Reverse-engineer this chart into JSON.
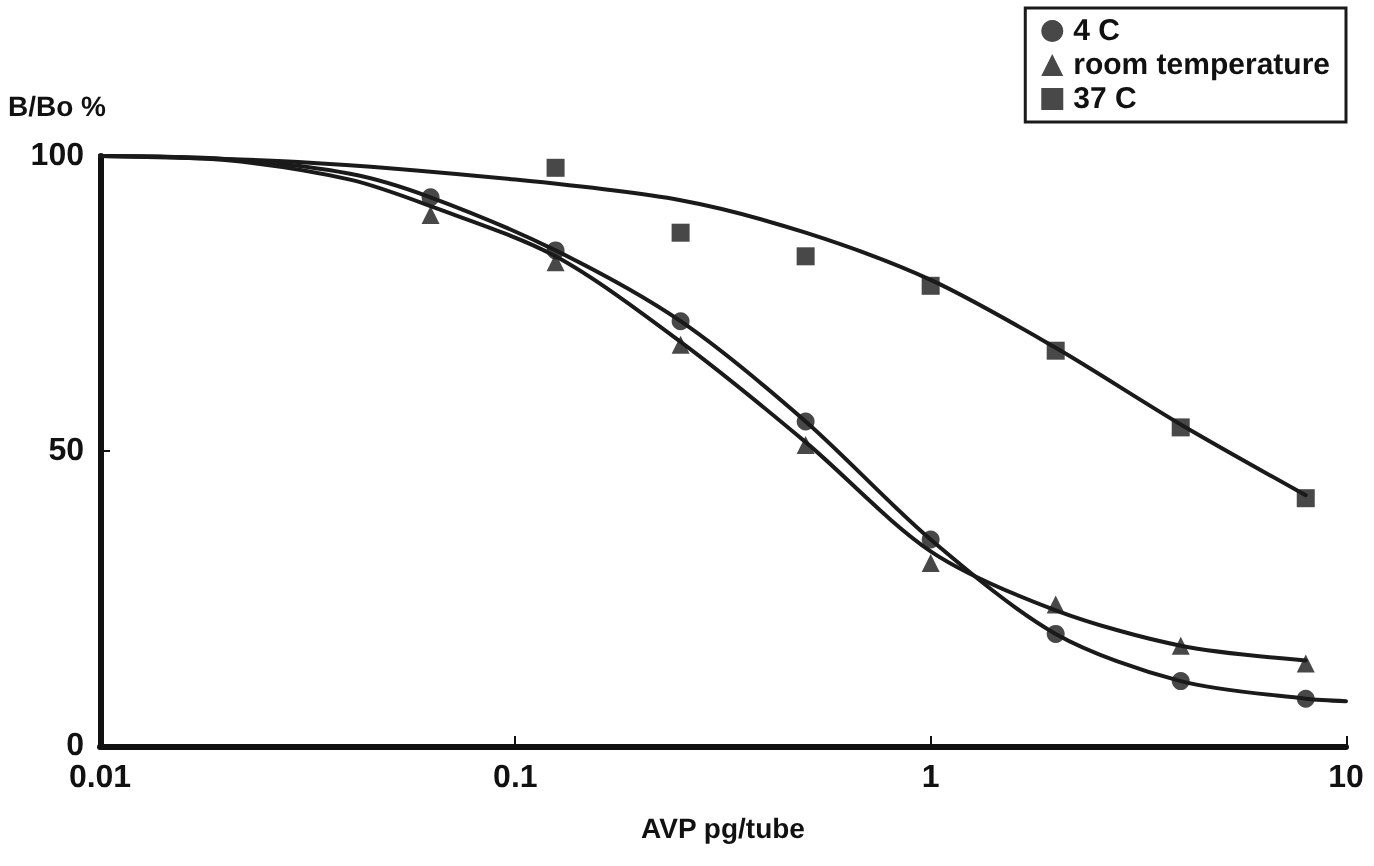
{
  "chart_data": {
    "type": "scatter",
    "xlabel": "AVP pg/tube",
    "ylabel": "B/Bo %",
    "log": "x",
    "grid": false,
    "legend": "top right",
    "xlim": [
      0.01,
      10
    ],
    "xticks": [
      0.01,
      0.1,
      1,
      10
    ],
    "ylim": [
      0,
      100
    ],
    "yticks": [
      0,
      50,
      100
    ],
    "series": [
      {
        "name": "4 C",
        "marker": "circle",
        "color": "#1a1a1a",
        "x": [
          0.0625,
          0.125,
          0.25,
          0.5,
          1,
          2,
          4,
          8
        ],
        "values": [
          93,
          84,
          72,
          55,
          35,
          19,
          11,
          8
        ]
      },
      {
        "name": "room temperature",
        "marker": "triangle",
        "color": "#1a1a1a",
        "x": [
          0.0625,
          0.125,
          0.25,
          0.5,
          1,
          2,
          4,
          8
        ],
        "values": [
          90,
          82,
          68,
          51,
          31,
          24,
          17,
          14
        ]
      },
      {
        "name": "37 C",
        "marker": "square",
        "color": "#1a1a1a",
        "x": [
          0.125,
          0.25,
          0.5,
          1,
          2,
          4,
          8
        ],
        "values": [
          98,
          87,
          83,
          78,
          67,
          54,
          42
        ]
      },
      {
        "type": "line",
        "marker": "none",
        "color": "#1a1a1a",
        "x": [
          0.01,
          0.02,
          0.04,
          0.0625,
          0.125,
          0.25,
          0.5,
          1,
          2,
          4,
          8,
          10
        ],
        "values": [
          100,
          99.5,
          97,
          93,
          84,
          72,
          55,
          35,
          19,
          11,
          8,
          7.6
        ]
      },
      {
        "type": "line",
        "marker": "none",
        "color": "#1a1a1a",
        "x": [
          0.01,
          0.02,
          0.04,
          0.0625,
          0.125,
          0.25,
          0.5,
          1,
          2,
          4,
          8
        ],
        "values": [
          100,
          99.3,
          96,
          91.5,
          83,
          68.5,
          51.5,
          33,
          23,
          17,
          14.5
        ]
      },
      {
        "type": "line",
        "marker": "none",
        "color": "#1a1a1a",
        "x": [
          0.01,
          0.03,
          0.1,
          0.25,
          0.5,
          1,
          2,
          4,
          8
        ],
        "values": [
          100,
          99,
          96,
          92.5,
          87,
          79,
          67.5,
          54.5,
          42.5
        ]
      }
    ]
  }
}
